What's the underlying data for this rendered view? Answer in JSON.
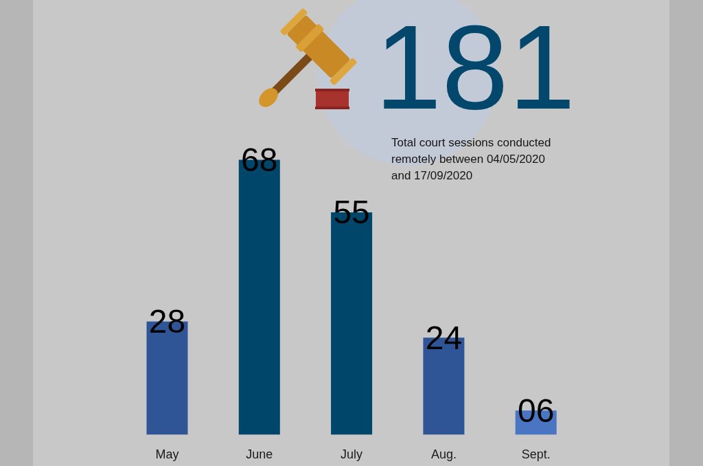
{
  "chart_data": {
    "type": "bar",
    "categories": [
      "May",
      "June",
      "July",
      "Aug.",
      "Sept."
    ],
    "values": [
      28,
      68,
      55,
      24,
      6
    ],
    "colors": [
      "#2f5597",
      "#00466a",
      "#00466a",
      "#2f5597",
      "#4a75c3"
    ],
    "value_labels": [
      "28",
      "68",
      "55",
      "24",
      "06"
    ],
    "annotations": [
      "181",
      "Total court sessions conducted remotely between 04/05/2020 and 17/09/2020"
    ]
  }
}
